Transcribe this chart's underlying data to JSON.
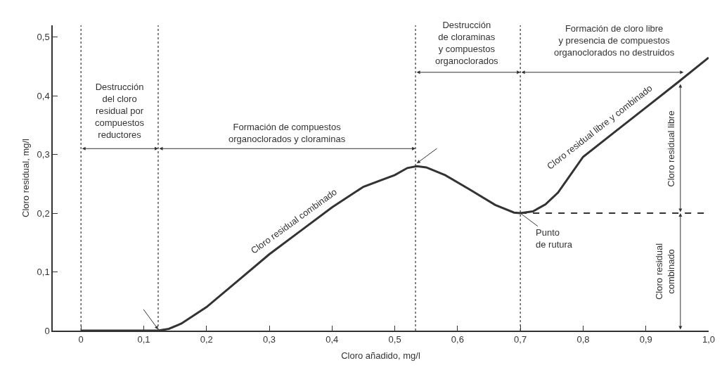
{
  "chart_data": {
    "type": "line",
    "xlabel": "Cloro añadido, mg/l",
    "ylabel": "Cloro residual, mg/l",
    "xlim": [
      -0.045,
      1.0
    ],
    "ylim": [
      0,
      0.52
    ],
    "xticks": [
      0,
      {
        "value": 0.1,
        "label": "0,1"
      },
      {
        "value": 0.2,
        "label": "0,2"
      },
      {
        "value": 0.3,
        "label": "0,3"
      },
      {
        "value": 0.4,
        "label": "0,4"
      },
      {
        "value": 0.5,
        "label": "0,5"
      },
      {
        "value": 0.6,
        "label": "0,6"
      },
      {
        "value": 0.7,
        "label": "0,7"
      },
      {
        "value": 0.8,
        "label": "0,8"
      },
      {
        "value": 0.9,
        "label": "0,9"
      },
      {
        "value": 1.0,
        "label": "1,0"
      }
    ],
    "yticks": [
      0,
      {
        "value": 0.1,
        "label": "0,1"
      },
      {
        "value": 0.2,
        "label": "0,2"
      },
      {
        "value": 0.3,
        "label": "0,3"
      },
      {
        "value": 0.4,
        "label": "0,4"
      },
      {
        "value": 0.5,
        "label": "0,5"
      }
    ],
    "series": [
      {
        "color": "#333333",
        "line_style": "solid",
        "x": [
          0,
          0.05,
          0.1,
          0.123,
          0.14,
          0.16,
          0.2,
          0.25,
          0.3,
          0.35,
          0.4,
          0.45,
          0.5,
          0.52,
          0.535,
          0.55,
          0.58,
          0.62,
          0.66,
          0.69,
          0.7,
          0.72,
          0.74,
          0.76,
          0.8,
          0.85,
          0.9,
          0.95,
          1.0
        ],
        "values": [
          0,
          0,
          0,
          0,
          0.003,
          0.012,
          0.04,
          0.085,
          0.13,
          0.17,
          0.21,
          0.245,
          0.265,
          0.277,
          0.28,
          0.278,
          0.265,
          0.24,
          0.214,
          0.201,
          0.2,
          0.203,
          0.215,
          0.235,
          0.296,
          0.338,
          0.38,
          0.422,
          0.465
        ]
      },
      {
        "color": "#333333",
        "line_style": "dashed",
        "x": [
          0.7,
          1.0
        ],
        "values": [
          0.2,
          0.2
        ]
      }
    ],
    "ref_lines": [
      {
        "axis": "x",
        "value": 0,
        "color": "#333333",
        "line_style": "dotted"
      },
      {
        "axis": "x",
        "value": 0.123,
        "color": "#333333",
        "line_style": "dotted"
      },
      {
        "axis": "x",
        "value": 0.533,
        "color": "#333333",
        "line_style": "dotted"
      },
      {
        "axis": "x",
        "value": 0.7,
        "color": "#333333",
        "line_style": "dotted"
      }
    ],
    "annotations": [
      "Destrucción\ndel cloro\nresidual por\ncompuestos\nreductores",
      "Formación de compuestos\norganoclorados y cloraminas",
      "Destrucción\nde cloraminas\ny compuestos\norganoclorados",
      "Formación de cloro libre\ny presencia de compuestos\norganoclorados no destruidos",
      {
        "text": "Cloro residual combinado",
        "x": 0.35,
        "y": 0.17
      },
      {
        "text": "Cloro residual libre y combinado",
        "x": 0.84,
        "y": 0.33
      },
      {
        "text": "Punto\nde rutura",
        "x": 0.7,
        "y": 0.2
      },
      "Cloro residual libre",
      "Cloro residual\ncombinado"
    ]
  }
}
